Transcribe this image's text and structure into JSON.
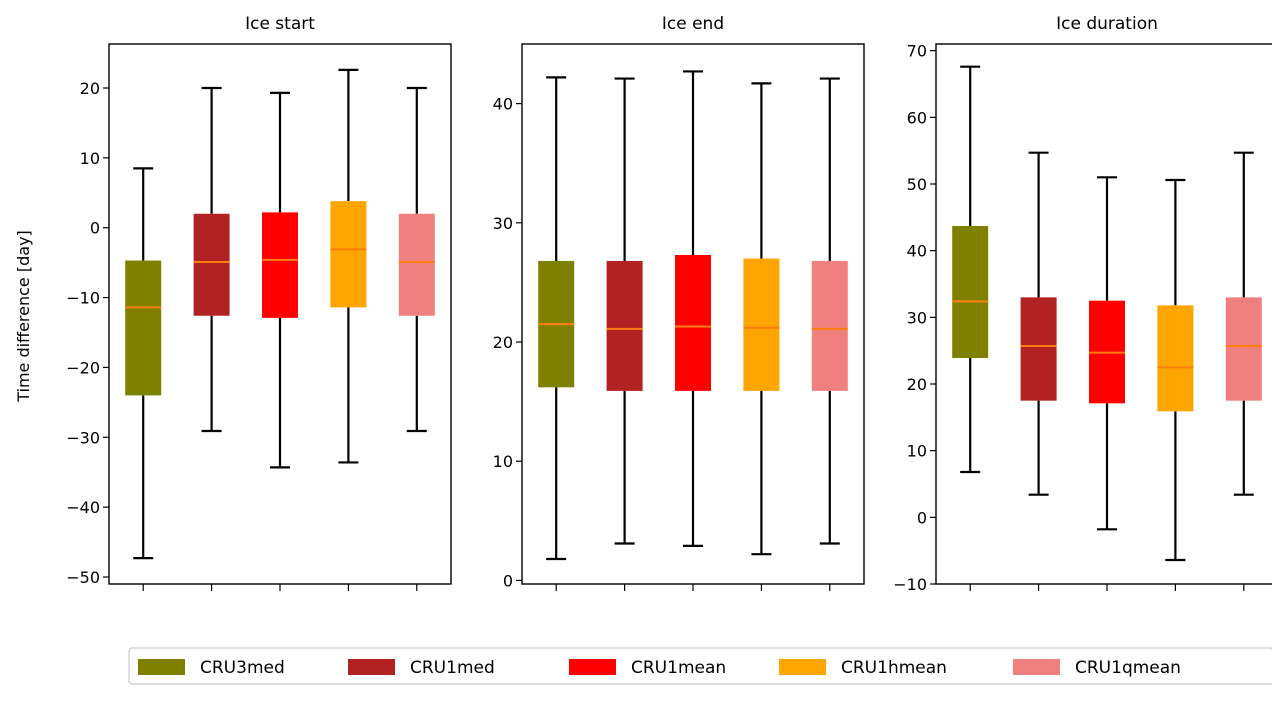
{
  "chart_data": {
    "type": "box",
    "ylabel": "Time difference [day]",
    "legend": {
      "placement": "bottom-center",
      "entries": [
        {
          "name": "CRU3med",
          "color": "#808000"
        },
        {
          "name": "CRU1med",
          "color": "#b22222"
        },
        {
          "name": "CRU1mean",
          "color": "#ff0000"
        },
        {
          "name": "CRU1hmean",
          "color": "#ffa500"
        },
        {
          "name": "CRU1qmean",
          "color": "#f08080"
        }
      ]
    },
    "median_color": "#ff7f0e",
    "panels": [
      {
        "title": "Ice start",
        "ylim": [
          -51,
          26.3
        ],
        "yticks": [
          -50,
          -40,
          -30,
          -20,
          -10,
          0,
          10,
          20
        ],
        "boxes": [
          {
            "series": "CRU3med",
            "whisker_low": -47.3,
            "q1": -24.0,
            "median": -11.4,
            "q3": -4.7,
            "whisker_high": 8.5
          },
          {
            "series": "CRU1med",
            "whisker_low": -29.1,
            "q1": -12.6,
            "median": -4.9,
            "q3": 2.0,
            "whisker_high": 20.0
          },
          {
            "series": "CRU1mean",
            "whisker_low": -34.3,
            "q1": -12.9,
            "median": -4.6,
            "q3": 2.2,
            "whisker_high": 19.3
          },
          {
            "series": "CRU1hmean",
            "whisker_low": -33.6,
            "q1": -11.4,
            "median": -3.1,
            "q3": 3.8,
            "whisker_high": 22.6
          },
          {
            "series": "CRU1qmean",
            "whisker_low": -29.1,
            "q1": -12.6,
            "median": -4.9,
            "q3": 2.0,
            "whisker_high": 20.0
          }
        ]
      },
      {
        "title": "Ice end",
        "ylim": [
          -0.3,
          45.0
        ],
        "yticks": [
          0,
          10,
          20,
          30,
          40
        ],
        "boxes": [
          {
            "series": "CRU3med",
            "whisker_low": 1.8,
            "q1": 16.2,
            "median": 21.5,
            "q3": 26.8,
            "whisker_high": 42.2
          },
          {
            "series": "CRU1med",
            "whisker_low": 3.1,
            "q1": 15.9,
            "median": 21.1,
            "q3": 26.8,
            "whisker_high": 42.1
          },
          {
            "series": "CRU1mean",
            "whisker_low": 2.9,
            "q1": 15.9,
            "median": 21.3,
            "q3": 27.3,
            "whisker_high": 42.7
          },
          {
            "series": "CRU1hmean",
            "whisker_low": 2.2,
            "q1": 15.9,
            "median": 21.2,
            "q3": 27.0,
            "whisker_high": 41.7
          },
          {
            "series": "CRU1qmean",
            "whisker_low": 3.1,
            "q1": 15.9,
            "median": 21.1,
            "q3": 26.8,
            "whisker_high": 42.1
          }
        ]
      },
      {
        "title": "Ice duration",
        "ylim": [
          -10,
          71.0
        ],
        "yticks": [
          -10,
          0,
          10,
          20,
          30,
          40,
          50,
          60,
          70
        ],
        "boxes": [
          {
            "series": "CRU3med",
            "whisker_low": 6.8,
            "q1": 23.9,
            "median": 32.4,
            "q3": 43.7,
            "whisker_high": 67.6
          },
          {
            "series": "CRU1med",
            "whisker_low": 3.4,
            "q1": 17.5,
            "median": 25.7,
            "q3": 33.0,
            "whisker_high": 54.7
          },
          {
            "series": "CRU1mean",
            "whisker_low": -1.8,
            "q1": 17.1,
            "median": 24.7,
            "q3": 32.5,
            "whisker_high": 51.0
          },
          {
            "series": "CRU1hmean",
            "whisker_low": -6.4,
            "q1": 15.9,
            "median": 22.5,
            "q3": 31.8,
            "whisker_high": 50.6
          },
          {
            "series": "CRU1qmean",
            "whisker_low": 3.4,
            "q1": 17.5,
            "median": 25.7,
            "q3": 33.0,
            "whisker_high": 54.7
          }
        ]
      }
    ]
  }
}
